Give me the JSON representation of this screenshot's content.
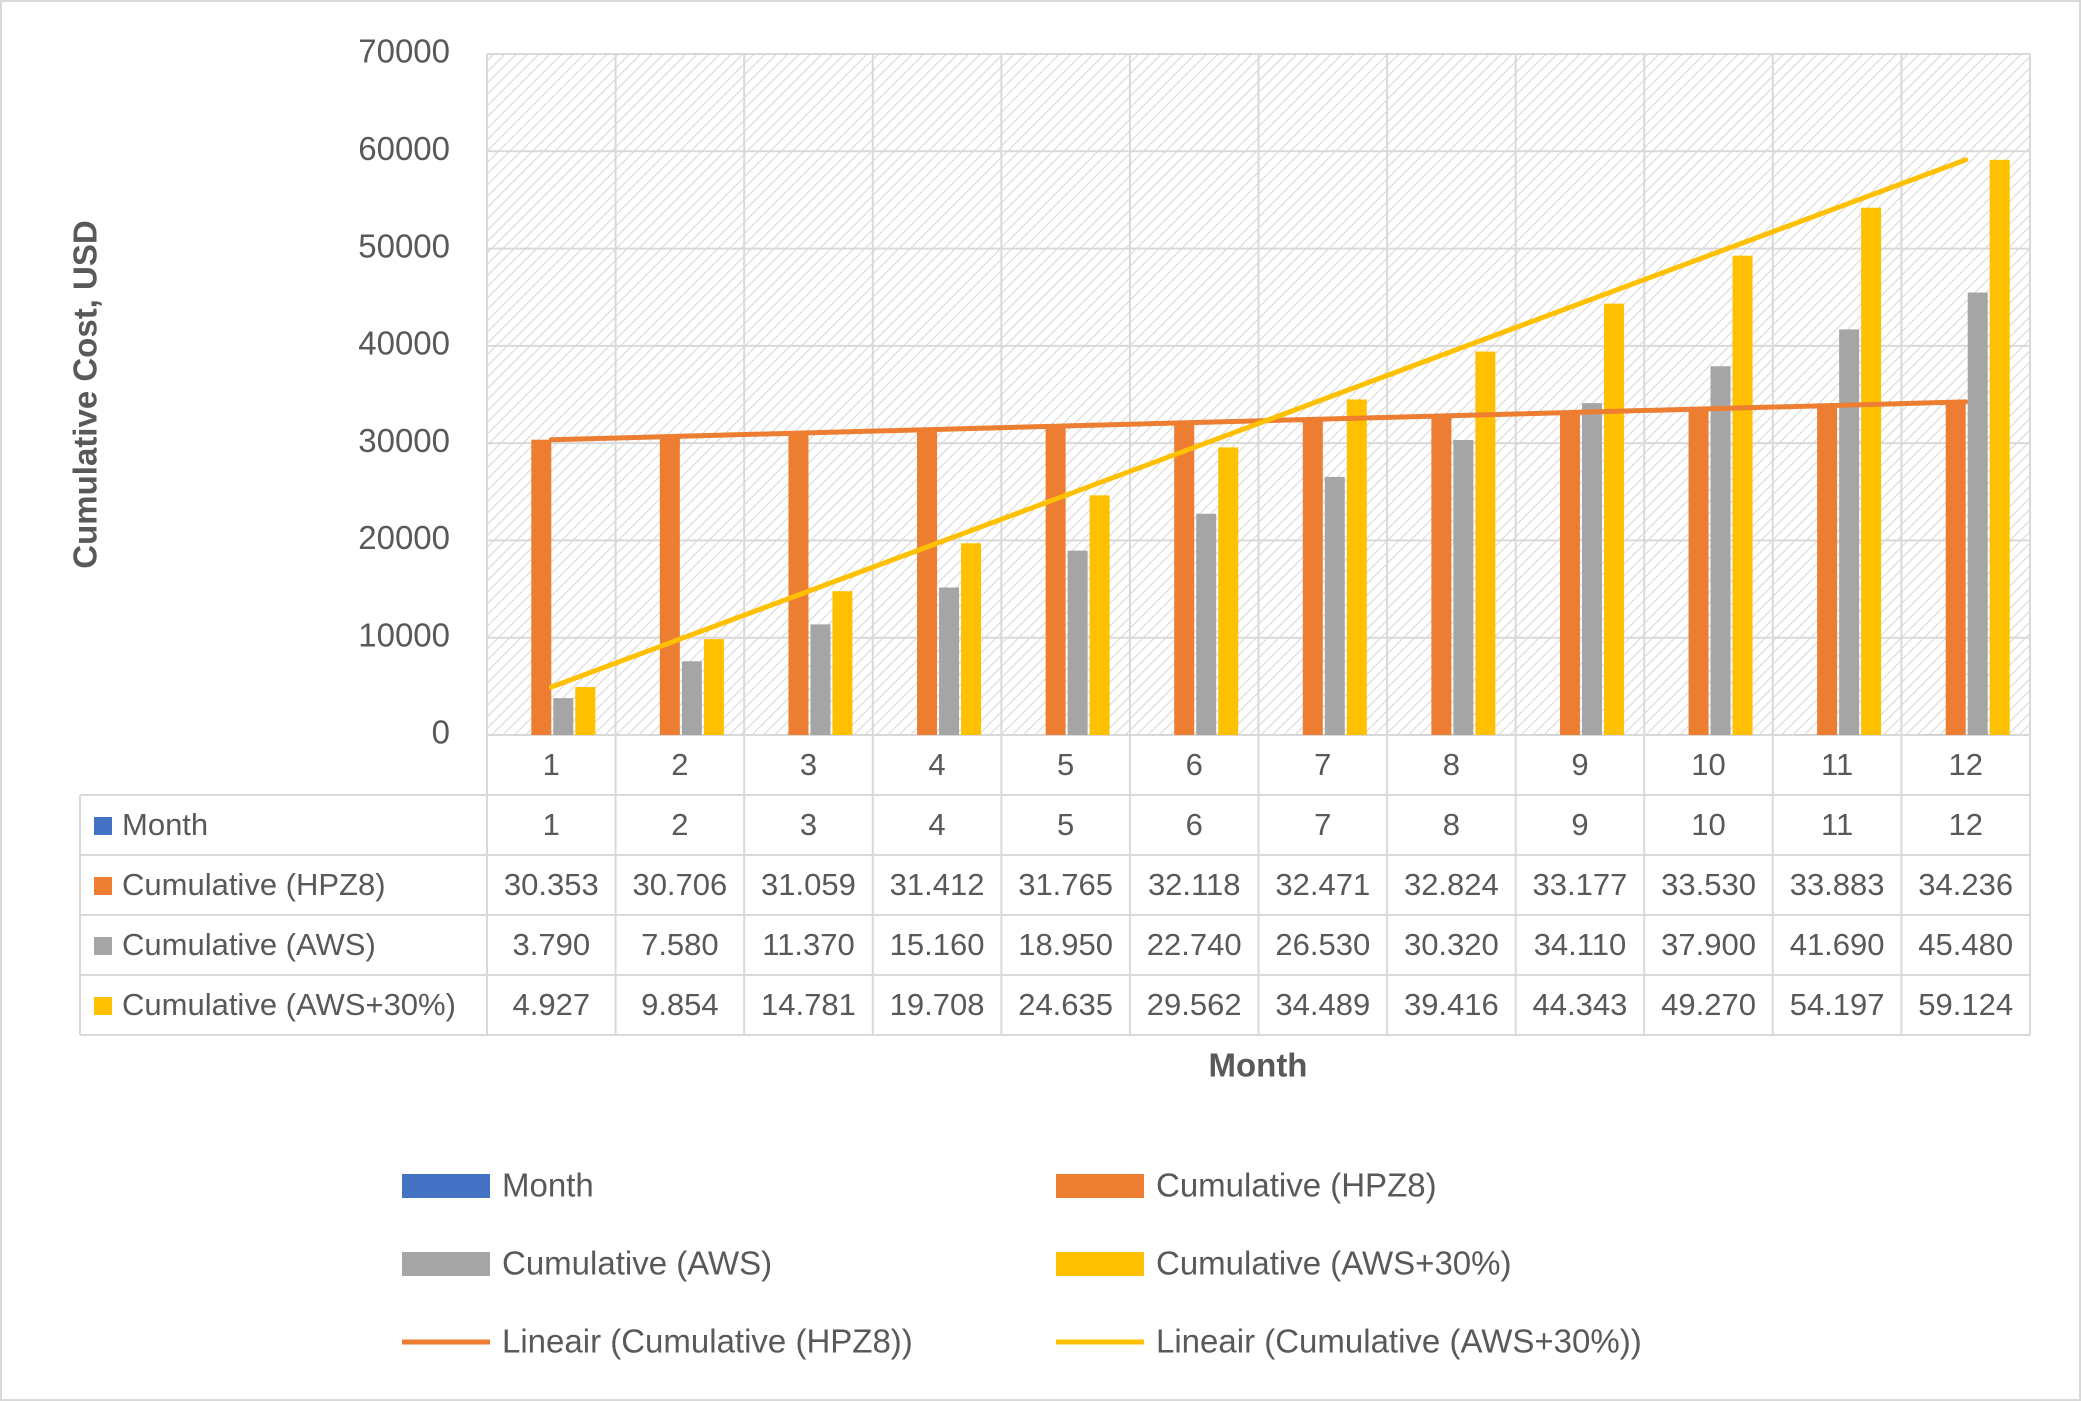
{
  "chart_data": {
    "type": "bar",
    "title": "",
    "ylabel": "Cumulative Cost, USD",
    "xlabel": "Month",
    "ylim": [
      0,
      70000
    ],
    "y_ticks": [
      0,
      10000,
      20000,
      30000,
      40000,
      50000,
      60000,
      70000
    ],
    "categories": [
      "1",
      "2",
      "3",
      "4",
      "5",
      "6",
      "7",
      "8",
      "9",
      "10",
      "11",
      "12"
    ],
    "grid": true,
    "plot_background": "diagonal hatch",
    "series": [
      {
        "name": "Month",
        "color": "#4472c4",
        "values": [
          1,
          2,
          3,
          4,
          5,
          6,
          7,
          8,
          9,
          10,
          11,
          12
        ],
        "table_values": [
          "1",
          "2",
          "3",
          "4",
          "5",
          "6",
          "7",
          "8",
          "9",
          "10",
          "11",
          "12"
        ]
      },
      {
        "name": "Cumulative (HPZ8)",
        "color": "#ed7d31",
        "values": [
          30353,
          30706,
          31059,
          31412,
          31765,
          32118,
          32471,
          32824,
          33177,
          33530,
          33883,
          34236
        ],
        "table_values": [
          "30.353",
          "30.706",
          "31.059",
          "31.412",
          "31.765",
          "32.118",
          "32.471",
          "32.824",
          "33.177",
          "33.530",
          "33.883",
          "34.236"
        ]
      },
      {
        "name": "Cumulative (AWS)",
        "color": "#a5a5a5",
        "values": [
          3790,
          7580,
          11370,
          15160,
          18950,
          22740,
          26530,
          30320,
          34110,
          37900,
          41690,
          45480
        ],
        "table_values": [
          "3.790",
          "7.580",
          "11.370",
          "15.160",
          "18.950",
          "22.740",
          "26.530",
          "30.320",
          "34.110",
          "37.900",
          "41.690",
          "45.480"
        ]
      },
      {
        "name": "Cumulative (AWS+30%)",
        "color": "#ffc000",
        "values": [
          4927,
          9854,
          14781,
          19708,
          24635,
          29562,
          34489,
          39416,
          44343,
          49270,
          54197,
          59124
        ],
        "table_values": [
          "4.927",
          "9.854",
          "14.781",
          "19.708",
          "24.635",
          "29.562",
          "34.489",
          "39.416",
          "44.343",
          "49.270",
          "54.197",
          "59.124"
        ]
      }
    ],
    "trendlines": [
      {
        "name": "Lineair (Cumulative (HPZ8))",
        "of_series": "Cumulative (HPZ8)",
        "color": "#ed7d31",
        "type": "linear"
      },
      {
        "name": "Lineair (Cumulative (AWS+30%))",
        "of_series": "Cumulative (AWS+30%)",
        "color": "#ffc000",
        "type": "linear"
      }
    ],
    "legend": {
      "placement": "bottom",
      "entries": [
        {
          "label": "Month",
          "kind": "bar",
          "color": "#4472c4"
        },
        {
          "label": "Cumulative (HPZ8)",
          "kind": "bar",
          "color": "#ed7d31"
        },
        {
          "label": "Cumulative (AWS)",
          "kind": "bar",
          "color": "#a5a5a5"
        },
        {
          "label": "Cumulative (AWS+30%)",
          "kind": "bar",
          "color": "#ffc000"
        },
        {
          "label": "Lineair (Cumulative (HPZ8))",
          "kind": "line",
          "color": "#ed7d31"
        },
        {
          "label": "Lineair (Cumulative (AWS+30%))",
          "kind": "line",
          "color": "#ffc000"
        }
      ]
    },
    "data_table": true
  }
}
